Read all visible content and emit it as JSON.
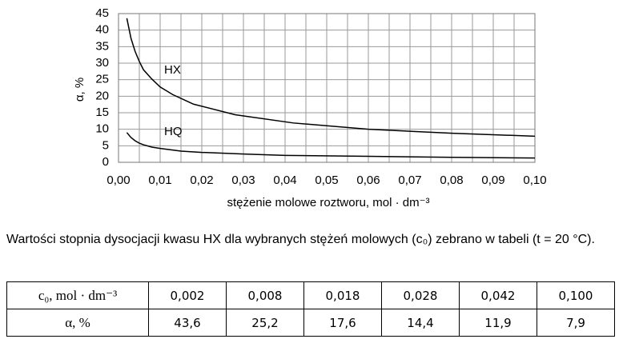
{
  "chart_data": {
    "type": "line",
    "x_label": "stężenie molowe roztworu, mol · dm⁻³",
    "y_label": "α, %",
    "series": [
      {
        "name": "HX",
        "color": "#000000",
        "x": [
          0.002,
          0.003,
          0.004,
          0.005,
          0.006,
          0.008,
          0.01,
          0.013,
          0.018,
          0.028,
          0.042,
          0.06,
          0.08,
          0.1
        ],
        "values": [
          43.6,
          37.5,
          33.5,
          30.5,
          28.0,
          25.2,
          22.8,
          20.5,
          17.6,
          14.4,
          11.9,
          10.0,
          8.8,
          7.9
        ]
      },
      {
        "name": "HQ",
        "color": "#000000",
        "x": [
          0.002,
          0.003,
          0.004,
          0.005,
          0.006,
          0.008,
          0.01,
          0.015,
          0.02,
          0.03,
          0.04,
          0.06,
          0.08,
          0.1
        ],
        "values": [
          9.0,
          7.5,
          6.5,
          5.8,
          5.3,
          4.6,
          4.2,
          3.4,
          3.0,
          2.5,
          2.1,
          1.8,
          1.5,
          1.3
        ]
      }
    ],
    "xlim": [
      0,
      0.1
    ],
    "ylim": [
      0,
      45
    ],
    "xticks": [
      {
        "value": 0,
        "label": "0,00"
      },
      {
        "value": 0.01,
        "label": "0,01"
      },
      {
        "value": 0.02,
        "label": "0,02"
      },
      {
        "value": 0.03,
        "label": "0,03"
      },
      {
        "value": 0.04,
        "label": "0,04"
      },
      {
        "value": 0.05,
        "label": "0,05"
      },
      {
        "value": 0.06,
        "label": "0,06"
      },
      {
        "value": 0.07,
        "label": "0,07"
      },
      {
        "value": 0.08,
        "label": "0,08"
      },
      {
        "value": 0.09,
        "label": "0,09"
      },
      {
        "value": 0.1,
        "label": "0,10"
      }
    ],
    "minor_xticks": [
      0.005,
      0.015,
      0.025,
      0.035,
      0.045,
      0.055,
      0.065,
      0.075,
      0.085,
      0.095
    ],
    "yticks": [
      0,
      5,
      10,
      15,
      20,
      25,
      30,
      35,
      40,
      45
    ],
    "grid": true
  },
  "paragraph": "Wartości stopnia dysocjacji kwasu HX dla wybranych stężeń molowych (c₀) zebrano w tabeli (t = 20 °C).",
  "table": {
    "rows": [
      [
        "c₀, mol · dm⁻³",
        "0,002",
        "0,008",
        "0,018",
        "0,028",
        "0,042",
        "0,100"
      ],
      [
        "α, %",
        "43,6",
        "25,2",
        "17,6",
        "14,4",
        "11,9",
        "7,9"
      ]
    ]
  }
}
